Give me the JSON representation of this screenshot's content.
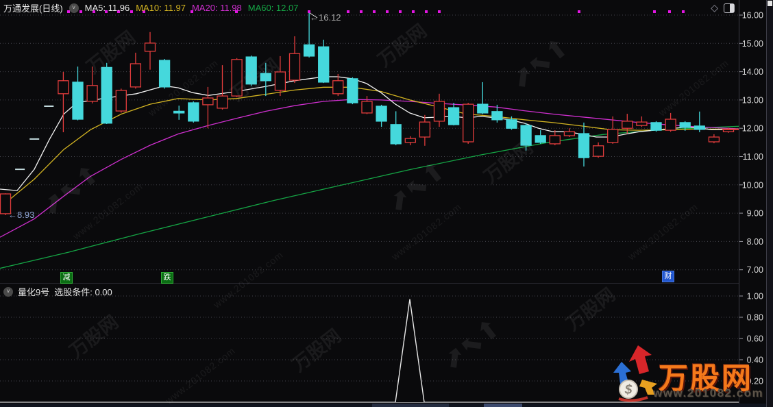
{
  "header": {
    "title": "万通发展(日线)",
    "ma_items": [
      {
        "label": "MA5: 11.96",
        "color": "#e8e8e8"
      },
      {
        "label": "MA10: 11.97",
        "color": "#d4b522"
      },
      {
        "label": "MA20: 11.98",
        "color": "#cf2fcf"
      },
      {
        "label": "MA60: 12.07",
        "color": "#15a545"
      }
    ]
  },
  "sub_header": {
    "name": "量化9号",
    "condition": "选股条件: 0.00"
  },
  "annotations": {
    "high": "←16.12",
    "low": "←8.93"
  },
  "watermark": {
    "brand": "万股网",
    "url": "www.201082.com"
  },
  "colors": {
    "background": "#0a0a0c",
    "up": "#e23c3c",
    "down": "#45d8dc",
    "flat_dash": "#c2dadd",
    "ma5": "#f2f2f2",
    "ma10": "#d4b522",
    "ma20": "#cf2fcf",
    "ma60": "#15a545",
    "signal_dot": "#e316e3",
    "grid": "#43434b",
    "axis_text": "#d8d8d8",
    "flag_green": "#0b6e14",
    "flag_blue": "#2257d0",
    "logo_orange": "#f5791b"
  },
  "chart_data": [
    {
      "type": "candlestick",
      "title": "万通发展(日线)",
      "y_ticks": [
        "16.00",
        "15.00",
        "14.00",
        "13.00",
        "12.00",
        "11.00",
        "10.00",
        "9.00",
        "8.00",
        "7.00"
      ],
      "ylim": [
        6.6,
        16.3
      ],
      "high_annotation": 16.12,
      "low_annotation": 8.93,
      "candles": [
        {
          "o": 8.98,
          "h": 9.7,
          "l": 8.93,
          "c": 9.68
        },
        {
          "flat": 10.55
        },
        {
          "flat": 11.62
        },
        {
          "flat": 12.78
        },
        {
          "o": 13.22,
          "h": 13.99,
          "l": 11.86,
          "c": 13.68
        },
        {
          "o": 13.63,
          "h": 14.18,
          "l": 12.28,
          "c": 12.32
        },
        {
          "o": 12.95,
          "h": 14.18,
          "l": 12.88,
          "c": 13.51
        },
        {
          "o": 14.15,
          "h": 14.31,
          "l": 12.15,
          "c": 12.18
        },
        {
          "o": 12.61,
          "h": 13.4,
          "l": 12.55,
          "c": 13.34
        },
        {
          "o": 13.46,
          "h": 14.67,
          "l": 13.4,
          "c": 14.28
        },
        {
          "o": 14.72,
          "h": 15.4,
          "l": 14.07,
          "c": 15.01
        },
        {
          "o": 14.4,
          "h": 14.45,
          "l": 13.4,
          "c": 13.46
        },
        {
          "o": 12.6,
          "h": 12.8,
          "l": 12.3,
          "c": 12.54
        },
        {
          "o": 12.9,
          "h": 12.95,
          "l": 12.2,
          "c": 12.25
        },
        {
          "o": 12.83,
          "h": 13.46,
          "l": 12.0,
          "c": 13.07
        },
        {
          "o": 12.71,
          "h": 14.23,
          "l": 12.66,
          "c": 13.14
        },
        {
          "o": 13.14,
          "h": 14.48,
          "l": 13.1,
          "c": 14.43
        },
        {
          "o": 14.52,
          "h": 14.57,
          "l": 13.5,
          "c": 13.56
        },
        {
          "o": 13.94,
          "h": 14.31,
          "l": 13.14,
          "c": 13.68
        },
        {
          "o": 13.34,
          "h": 14.55,
          "l": 13.14,
          "c": 13.99
        },
        {
          "o": 13.7,
          "h": 15.25,
          "l": 13.6,
          "c": 14.64
        },
        {
          "o": 14.95,
          "h": 16.12,
          "l": 14.5,
          "c": 14.55
        },
        {
          "o": 14.88,
          "h": 15.13,
          "l": 13.6,
          "c": 13.63
        },
        {
          "o": 13.22,
          "h": 13.92,
          "l": 13.14,
          "c": 13.68
        },
        {
          "o": 13.75,
          "h": 13.8,
          "l": 12.85,
          "c": 12.9
        },
        {
          "o": 12.54,
          "h": 13.14,
          "l": 12.5,
          "c": 12.95
        },
        {
          "o": 12.78,
          "h": 12.83,
          "l": 12.05,
          "c": 12.25
        },
        {
          "o": 12.13,
          "h": 12.6,
          "l": 11.4,
          "c": 11.45
        },
        {
          "o": 11.5,
          "h": 11.72,
          "l": 11.4,
          "c": 11.64
        },
        {
          "o": 11.69,
          "h": 12.47,
          "l": 11.38,
          "c": 12.22
        },
        {
          "o": 12.25,
          "h": 13.22,
          "l": 12.05,
          "c": 12.95
        },
        {
          "o": 12.73,
          "h": 12.9,
          "l": 12.1,
          "c": 12.13
        },
        {
          "o": 11.52,
          "h": 12.9,
          "l": 11.45,
          "c": 12.85
        },
        {
          "o": 12.85,
          "h": 13.63,
          "l": 12.5,
          "c": 12.54
        },
        {
          "o": 12.59,
          "h": 12.83,
          "l": 12.2,
          "c": 12.3
        },
        {
          "o": 12.3,
          "h": 12.42,
          "l": 11.95,
          "c": 12.0
        },
        {
          "o": 12.1,
          "h": 12.18,
          "l": 11.21,
          "c": 11.4
        },
        {
          "o": 11.74,
          "h": 11.93,
          "l": 11.45,
          "c": 11.5
        },
        {
          "o": 11.45,
          "h": 11.93,
          "l": 11.4,
          "c": 11.74
        },
        {
          "o": 11.74,
          "h": 12.0,
          "l": 11.69,
          "c": 11.88
        },
        {
          "o": 11.81,
          "h": 12.2,
          "l": 10.65,
          "c": 10.96
        },
        {
          "o": 11.01,
          "h": 11.5,
          "l": 10.96,
          "c": 11.38
        },
        {
          "o": 11.5,
          "h": 12.42,
          "l": 11.45,
          "c": 11.96
        },
        {
          "o": 12.0,
          "h": 12.51,
          "l": 11.81,
          "c": 12.25
        },
        {
          "o": 12.1,
          "h": 12.42,
          "l": 12.05,
          "c": 12.22
        },
        {
          "o": 12.2,
          "h": 12.25,
          "l": 11.88,
          "c": 11.93
        },
        {
          "o": 11.93,
          "h": 12.54,
          "l": 11.88,
          "c": 12.32
        },
        {
          "o": 12.2,
          "h": 12.25,
          "l": 11.91,
          "c": 12.03
        },
        {
          "o": 12.08,
          "h": 12.59,
          "l": 11.86,
          "c": 11.96
        },
        {
          "o": 11.52,
          "h": 11.79,
          "l": 11.47,
          "c": 11.69
        },
        {
          "o": 11.88,
          "h": 12.02,
          "l": 11.84,
          "c": 11.96,
          "last": true
        }
      ],
      "series": [
        {
          "name": "MA5",
          "points": [
            [
              0,
              9.85
            ],
            [
              25,
              9.8
            ],
            [
              50,
              10.55
            ],
            [
              72,
              11.6
            ],
            [
              93,
              12.5
            ],
            [
              112,
              12.9
            ],
            [
              155,
              13.07
            ],
            [
              199,
              13.22
            ],
            [
              240,
              13.5
            ],
            [
              260,
              13.43
            ],
            [
              281,
              13.26
            ],
            [
              304,
              13.16
            ],
            [
              345,
              13.3
            ],
            [
              388,
              13.48
            ],
            [
              430,
              13.68
            ],
            [
              472,
              13.82
            ],
            [
              493,
              13.82
            ],
            [
              514,
              13.75
            ],
            [
              535,
              13.58
            ],
            [
              556,
              13.26
            ],
            [
              577,
              12.85
            ],
            [
              598,
              12.54
            ],
            [
              619,
              12.37
            ],
            [
              660,
              12.42
            ],
            [
              681,
              12.37
            ],
            [
              702,
              12.42
            ],
            [
              723,
              12.37
            ],
            [
              744,
              12.3
            ],
            [
              765,
              12.18
            ],
            [
              786,
              12.0
            ],
            [
              807,
              11.88
            ],
            [
              828,
              11.88
            ],
            [
              849,
              11.79
            ],
            [
              870,
              11.69
            ],
            [
              891,
              11.69
            ],
            [
              912,
              11.79
            ],
            [
              933,
              11.88
            ],
            [
              954,
              11.93
            ],
            [
              975,
              11.98
            ],
            [
              996,
              12.03
            ],
            [
              1017,
              12.03
            ],
            [
              1038,
              11.95
            ],
            [
              1078,
              11.96
            ]
          ]
        },
        {
          "name": "MA10",
          "points": [
            [
              0,
              9.2
            ],
            [
              50,
              10.2
            ],
            [
              93,
              11.25
            ],
            [
              132,
              11.95
            ],
            [
              177,
              12.5
            ],
            [
              219,
              12.85
            ],
            [
              260,
              13.05
            ],
            [
              304,
              13.0
            ],
            [
              345,
              13.05
            ],
            [
              388,
              13.2
            ],
            [
              430,
              13.35
            ],
            [
              472,
              13.45
            ],
            [
              514,
              13.45
            ],
            [
              556,
              13.3
            ],
            [
              598,
              13.0
            ],
            [
              640,
              12.75
            ],
            [
              681,
              12.5
            ],
            [
              723,
              12.42
            ],
            [
              765,
              12.3
            ],
            [
              807,
              12.2
            ],
            [
              849,
              12.08
            ],
            [
              891,
              11.95
            ],
            [
              933,
              11.93
            ],
            [
              975,
              11.95
            ],
            [
              1017,
              11.97
            ],
            [
              1078,
              11.97
            ]
          ]
        },
        {
          "name": "MA20",
          "points": [
            [
              0,
              8.15
            ],
            [
              50,
              8.8
            ],
            [
              93,
              9.6
            ],
            [
              132,
              10.3
            ],
            [
              177,
              10.9
            ],
            [
              219,
              11.4
            ],
            [
              260,
              11.8
            ],
            [
              304,
              12.1
            ],
            [
              345,
              12.35
            ],
            [
              388,
              12.6
            ],
            [
              430,
              12.8
            ],
            [
              472,
              12.95
            ],
            [
              514,
              13.02
            ],
            [
              556,
              13.0
            ],
            [
              598,
              12.95
            ],
            [
              640,
              12.88
            ],
            [
              681,
              12.82
            ],
            [
              723,
              12.75
            ],
            [
              765,
              12.62
            ],
            [
              807,
              12.5
            ],
            [
              849,
              12.4
            ],
            [
              891,
              12.3
            ],
            [
              933,
              12.2
            ],
            [
              975,
              12.12
            ],
            [
              1017,
              12.05
            ],
            [
              1078,
              11.98
            ]
          ]
        },
        {
          "name": "MA60",
          "points": [
            [
              0,
              7.05
            ],
            [
              100,
              7.62
            ],
            [
              200,
              8.25
            ],
            [
              300,
              8.85
            ],
            [
              400,
              9.45
            ],
            [
              500,
              10.0
            ],
            [
              600,
              10.55
            ],
            [
              700,
              11.05
            ],
            [
              800,
              11.5
            ],
            [
              880,
              11.78
            ],
            [
              950,
              11.92
            ],
            [
              1010,
              12.0
            ],
            [
              1078,
              12.07
            ]
          ]
        }
      ],
      "signal_dots_x": [
        100,
        118,
        137,
        155,
        173,
        192,
        210,
        280,
        345,
        451,
        508,
        527,
        546,
        565,
        584,
        603,
        622,
        641,
        845,
        955,
        977,
        997
      ],
      "flags": [
        {
          "text": "减",
          "type": "green",
          "x": 97,
          "y": 397
        },
        {
          "text": "跌",
          "type": "green",
          "x": 244,
          "y": 397
        },
        {
          "text": "财",
          "type": "blue",
          "x": 975,
          "y": 395
        }
      ]
    },
    {
      "type": "area-spike",
      "name": "量化9号",
      "value_label": "选股条件: 0.00",
      "y_ticks": [
        "1.00",
        "0.80",
        "0.60",
        "0.40",
        "0.20"
      ],
      "ylim": [
        0,
        1.1
      ],
      "spike": {
        "x": 598,
        "peak": 0.97,
        "base_half_width": 21
      },
      "baseline_value": 0
    }
  ]
}
